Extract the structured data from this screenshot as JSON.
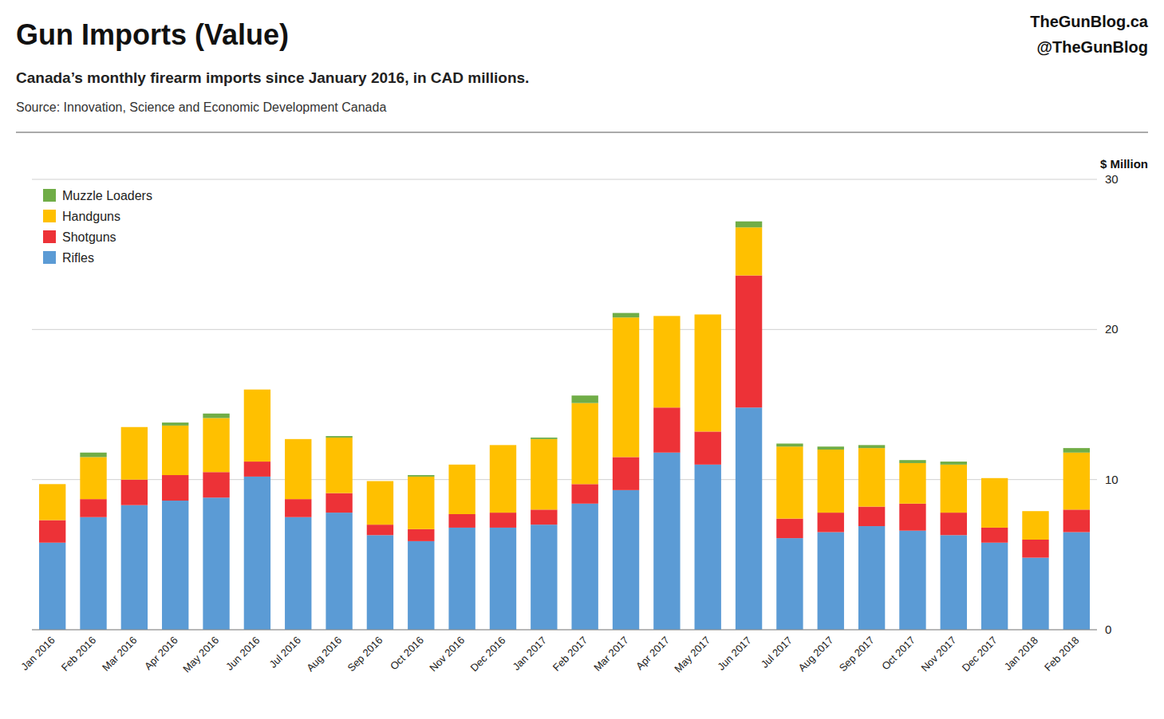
{
  "chart_data": {
    "type": "bar",
    "stacked": true,
    "title": "Gun Imports (Value)",
    "subtitle": "Canada’s monthly firearm imports since January 2016, in CAD millions.",
    "annotations": [
      "Source: Innovation, Science and Economic Development Canada",
      "TheGunBlog.ca",
      "@TheGunBlog"
    ],
    "y_label": "$ Million",
    "ylim": [
      0,
      30
    ],
    "yticks": [
      0,
      10,
      20,
      30
    ],
    "grid": true,
    "legend": "upper left",
    "categories": [
      "Jan 2016",
      "Feb 2016",
      "Mar 2016",
      "Apr 2016",
      "May 2016",
      "Jun 2016",
      "Jul 2016",
      "Aug 2016",
      "Sep 2016",
      "Oct 2016",
      "Nov 2016",
      "Dec 2016",
      "Jan 2017",
      "Feb 2017",
      "Mar 2017",
      "Apr 2017",
      "May 2017",
      "Jun 2017",
      "Jul 2017",
      "Aug 2017",
      "Sep 2017",
      "Oct 2017",
      "Nov 2017",
      "Dec 2017",
      "Jan 2018",
      "Feb 2018"
    ],
    "series": [
      {
        "name": "Rifles",
        "color": "#5B9BD5",
        "values": [
          5.8,
          7.5,
          8.3,
          8.6,
          8.8,
          10.2,
          7.5,
          7.8,
          6.3,
          5.9,
          6.8,
          6.8,
          7.0,
          8.4,
          9.3,
          11.8,
          11.0,
          14.8,
          6.1,
          6.5,
          6.9,
          6.6,
          6.3,
          5.8,
          4.8,
          6.5
        ]
      },
      {
        "name": "Shotguns",
        "color": "#ED3237",
        "values": [
          1.5,
          1.2,
          1.7,
          1.7,
          1.7,
          1.0,
          1.2,
          1.3,
          0.7,
          0.8,
          0.9,
          1.0,
          1.0,
          1.3,
          2.2,
          3.0,
          2.2,
          8.8,
          1.3,
          1.3,
          1.3,
          1.8,
          1.5,
          1.0,
          1.2,
          1.5
        ]
      },
      {
        "name": "Handguns",
        "color": "#FFC000",
        "values": [
          2.4,
          2.8,
          3.5,
          3.3,
          3.6,
          4.8,
          4.0,
          3.7,
          2.9,
          3.5,
          3.3,
          4.5,
          4.7,
          5.4,
          9.3,
          6.1,
          7.8,
          3.2,
          4.8,
          4.2,
          3.9,
          2.7,
          3.2,
          3.3,
          1.9,
          3.8
        ]
      },
      {
        "name": "Muzzle Loaders",
        "color": "#70AD47",
        "values": [
          0.0,
          0.3,
          0.0,
          0.2,
          0.3,
          0.0,
          0.0,
          0.1,
          0.0,
          0.1,
          0.0,
          0.0,
          0.1,
          0.5,
          0.3,
          0.0,
          0.0,
          0.4,
          0.2,
          0.2,
          0.2,
          0.2,
          0.2,
          0.0,
          0.0,
          0.3
        ]
      }
    ]
  }
}
